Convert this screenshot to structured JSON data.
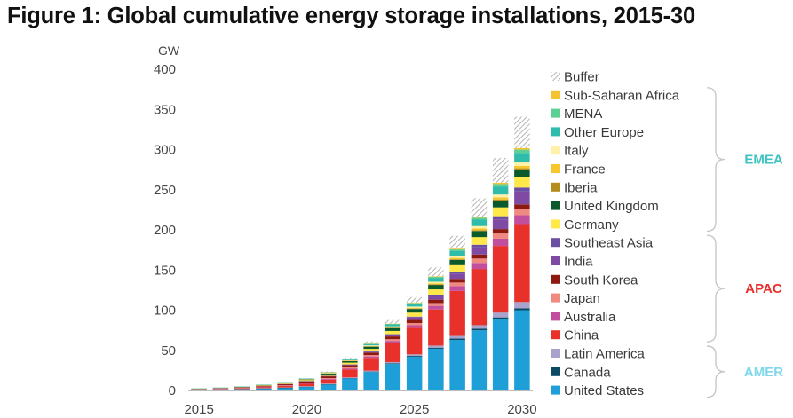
{
  "title": "Figure 1: Global cumulative energy storage installations, 2015-30",
  "chart_data": {
    "type": "bar",
    "stacked": true,
    "title": "Figure 1: Global cumulative energy storage installations, 2015-30",
    "unit_label": "GW",
    "ylim": [
      0,
      400
    ],
    "y_ticks": [
      "0",
      "50",
      "100",
      "150",
      "200",
      "250",
      "300",
      "350",
      "400"
    ],
    "categories": [
      "2015",
      "2016",
      "2017",
      "2018",
      "2019",
      "2020",
      "2021",
      "2022",
      "2023",
      "2024",
      "2025",
      "2026",
      "2027",
      "2028",
      "2029",
      "2030"
    ],
    "x_tick_labels": [
      "2015",
      "2020",
      "2025",
      "2030"
    ],
    "series": [
      {
        "name": "United States",
        "color": "#1e9fd8",
        "values": [
          0.8,
          1.2,
          1.6,
          2.4,
          3.2,
          4.5,
          7.5,
          15,
          23,
          33,
          42,
          52,
          63,
          75,
          89,
          100
        ]
      },
      {
        "name": "Canada",
        "color": "#0b4a62",
        "values": [
          0.1,
          0.1,
          0.1,
          0.1,
          0.1,
          0.2,
          0.3,
          0.4,
          0.6,
          0.8,
          1,
          1.3,
          1.6,
          1.8,
          2,
          2.2
        ]
      },
      {
        "name": "Latin America",
        "color": "#a7a3cc",
        "values": [
          0.2,
          0.2,
          0.3,
          0.4,
          0.5,
          0.6,
          0.7,
          0.9,
          1.1,
          1.6,
          2,
          2.6,
          3.3,
          4.5,
          6,
          8
        ]
      },
      {
        "name": "China",
        "color": "#e8312b",
        "values": [
          0.4,
          0.6,
          0.8,
          1.2,
          1.8,
          3,
          5,
          10,
          16,
          24,
          33,
          45,
          56,
          70,
          83,
          97
        ]
      },
      {
        "name": "Australia",
        "color": "#c24f9e",
        "values": [
          0.1,
          0.1,
          0.2,
          0.3,
          0.4,
          0.6,
          0.9,
          1.2,
          1.7,
          2.3,
          3.2,
          4.5,
          6,
          7.5,
          9,
          11
        ]
      },
      {
        "name": "Japan",
        "color": "#ef8a80",
        "values": [
          0.2,
          0.3,
          0.4,
          0.5,
          0.6,
          0.8,
          1,
          1.3,
          1.7,
          2.2,
          2.8,
          3.5,
          4.5,
          5.5,
          6.5,
          7.5
        ]
      },
      {
        "name": "South Korea",
        "color": "#8c1a10",
        "values": [
          0.2,
          0.4,
          0.6,
          1,
          1.4,
          1.8,
          2.2,
          2.6,
          3,
          3.4,
          3.8,
          4.2,
          4.6,
          5,
          5.5,
          6
        ]
      },
      {
        "name": "India",
        "color": "#7f4aa3",
        "values": [
          0,
          0,
          0,
          0,
          0.1,
          0.2,
          0.4,
          0.8,
          1.2,
          2,
          3,
          4.5,
          6.5,
          9,
          12,
          16
        ]
      },
      {
        "name": "Southeast Asia",
        "color": "#6a4fa3",
        "values": [
          0,
          0,
          0,
          0,
          0,
          0.1,
          0.2,
          0.3,
          0.5,
          0.8,
          1.2,
          1.8,
          2.5,
          3.2,
          4,
          5
        ]
      },
      {
        "name": "Germany",
        "color": "#ffe84a",
        "values": [
          0.2,
          0.3,
          0.4,
          0.6,
          0.9,
          1.2,
          1.6,
          2.2,
          3,
          4,
          5,
          6.5,
          8,
          9.5,
          11,
          13
        ]
      },
      {
        "name": "United Kingdom",
        "color": "#0a5a2c",
        "values": [
          0.1,
          0.1,
          0.2,
          0.4,
          0.7,
          1,
          1.4,
          2,
          2.8,
          3.6,
          4.5,
          5.5,
          6.5,
          7.5,
          8.5,
          9.5
        ]
      },
      {
        "name": "Iberia",
        "color": "#b58c1a",
        "values": [
          0,
          0,
          0,
          0,
          0,
          0,
          0.1,
          0.2,
          0.3,
          0.4,
          0.5,
          0.7,
          0.9,
          1.1,
          1.3,
          1.5
        ]
      },
      {
        "name": "France",
        "color": "#f7c52e",
        "values": [
          0,
          0,
          0,
          0,
          0.1,
          0.1,
          0.2,
          0.3,
          0.5,
          0.7,
          1,
          1.3,
          1.7,
          2.1,
          2.6,
          3
        ]
      },
      {
        "name": "Italy",
        "color": "#fff2a8",
        "values": [
          0.1,
          0.1,
          0.1,
          0.2,
          0.2,
          0.3,
          0.4,
          0.6,
          0.8,
          1.1,
          1.5,
          2,
          2.5,
          3,
          3.6,
          4.2
        ]
      },
      {
        "name": "Other Europe",
        "color": "#2fbcab",
        "values": [
          0.1,
          0.2,
          0.2,
          0.3,
          0.4,
          0.6,
          0.8,
          1.2,
          1.7,
          2.5,
          3.5,
          4.8,
          6.3,
          8,
          10,
          12
        ]
      },
      {
        "name": "MENA",
        "color": "#5ccf94",
        "values": [
          0,
          0,
          0,
          0,
          0,
          0,
          0.1,
          0.2,
          0.3,
          0.5,
          0.8,
          1.2,
          1.7,
          2.3,
          3,
          4
        ]
      },
      {
        "name": "Sub-Saharan Africa",
        "color": "#f5c230",
        "values": [
          0,
          0,
          0,
          0,
          0,
          0,
          0.1,
          0.1,
          0.2,
          0.3,
          0.5,
          0.7,
          1,
          1.3,
          1.6,
          2
        ]
      },
      {
        "name": "Buffer",
        "color": "#cfcfcf",
        "pattern": "hatch",
        "values": [
          0,
          0,
          0,
          0,
          0,
          0.3,
          0.7,
          1.5,
          2.8,
          4.5,
          7,
          11,
          16,
          23,
          31,
          39
        ]
      }
    ],
    "legend": {
      "placement": "right",
      "entries": [
        "Buffer",
        "Sub-Saharan Africa",
        "MENA",
        "Other Europe",
        "Italy",
        "France",
        "Iberia",
        "United Kingdom",
        "Germany",
        "Southeast Asia",
        "India",
        "South Korea",
        "Japan",
        "Australia",
        "China",
        "Latin America",
        "Canada",
        "United States"
      ]
    },
    "groups": [
      {
        "name": "EMEA",
        "color": "#3ec3c0",
        "members": [
          "Sub-Saharan Africa",
          "MENA",
          "Other Europe",
          "Italy",
          "France",
          "Iberia",
          "United Kingdom",
          "Germany"
        ]
      },
      {
        "name": "APAC",
        "color": "#e8312b",
        "members": [
          "Southeast Asia",
          "India",
          "South Korea",
          "Japan",
          "Australia",
          "China"
        ]
      },
      {
        "name": "AMER",
        "color": "#7fd7ec",
        "members": [
          "Latin America",
          "Canada",
          "United States"
        ]
      }
    ]
  }
}
